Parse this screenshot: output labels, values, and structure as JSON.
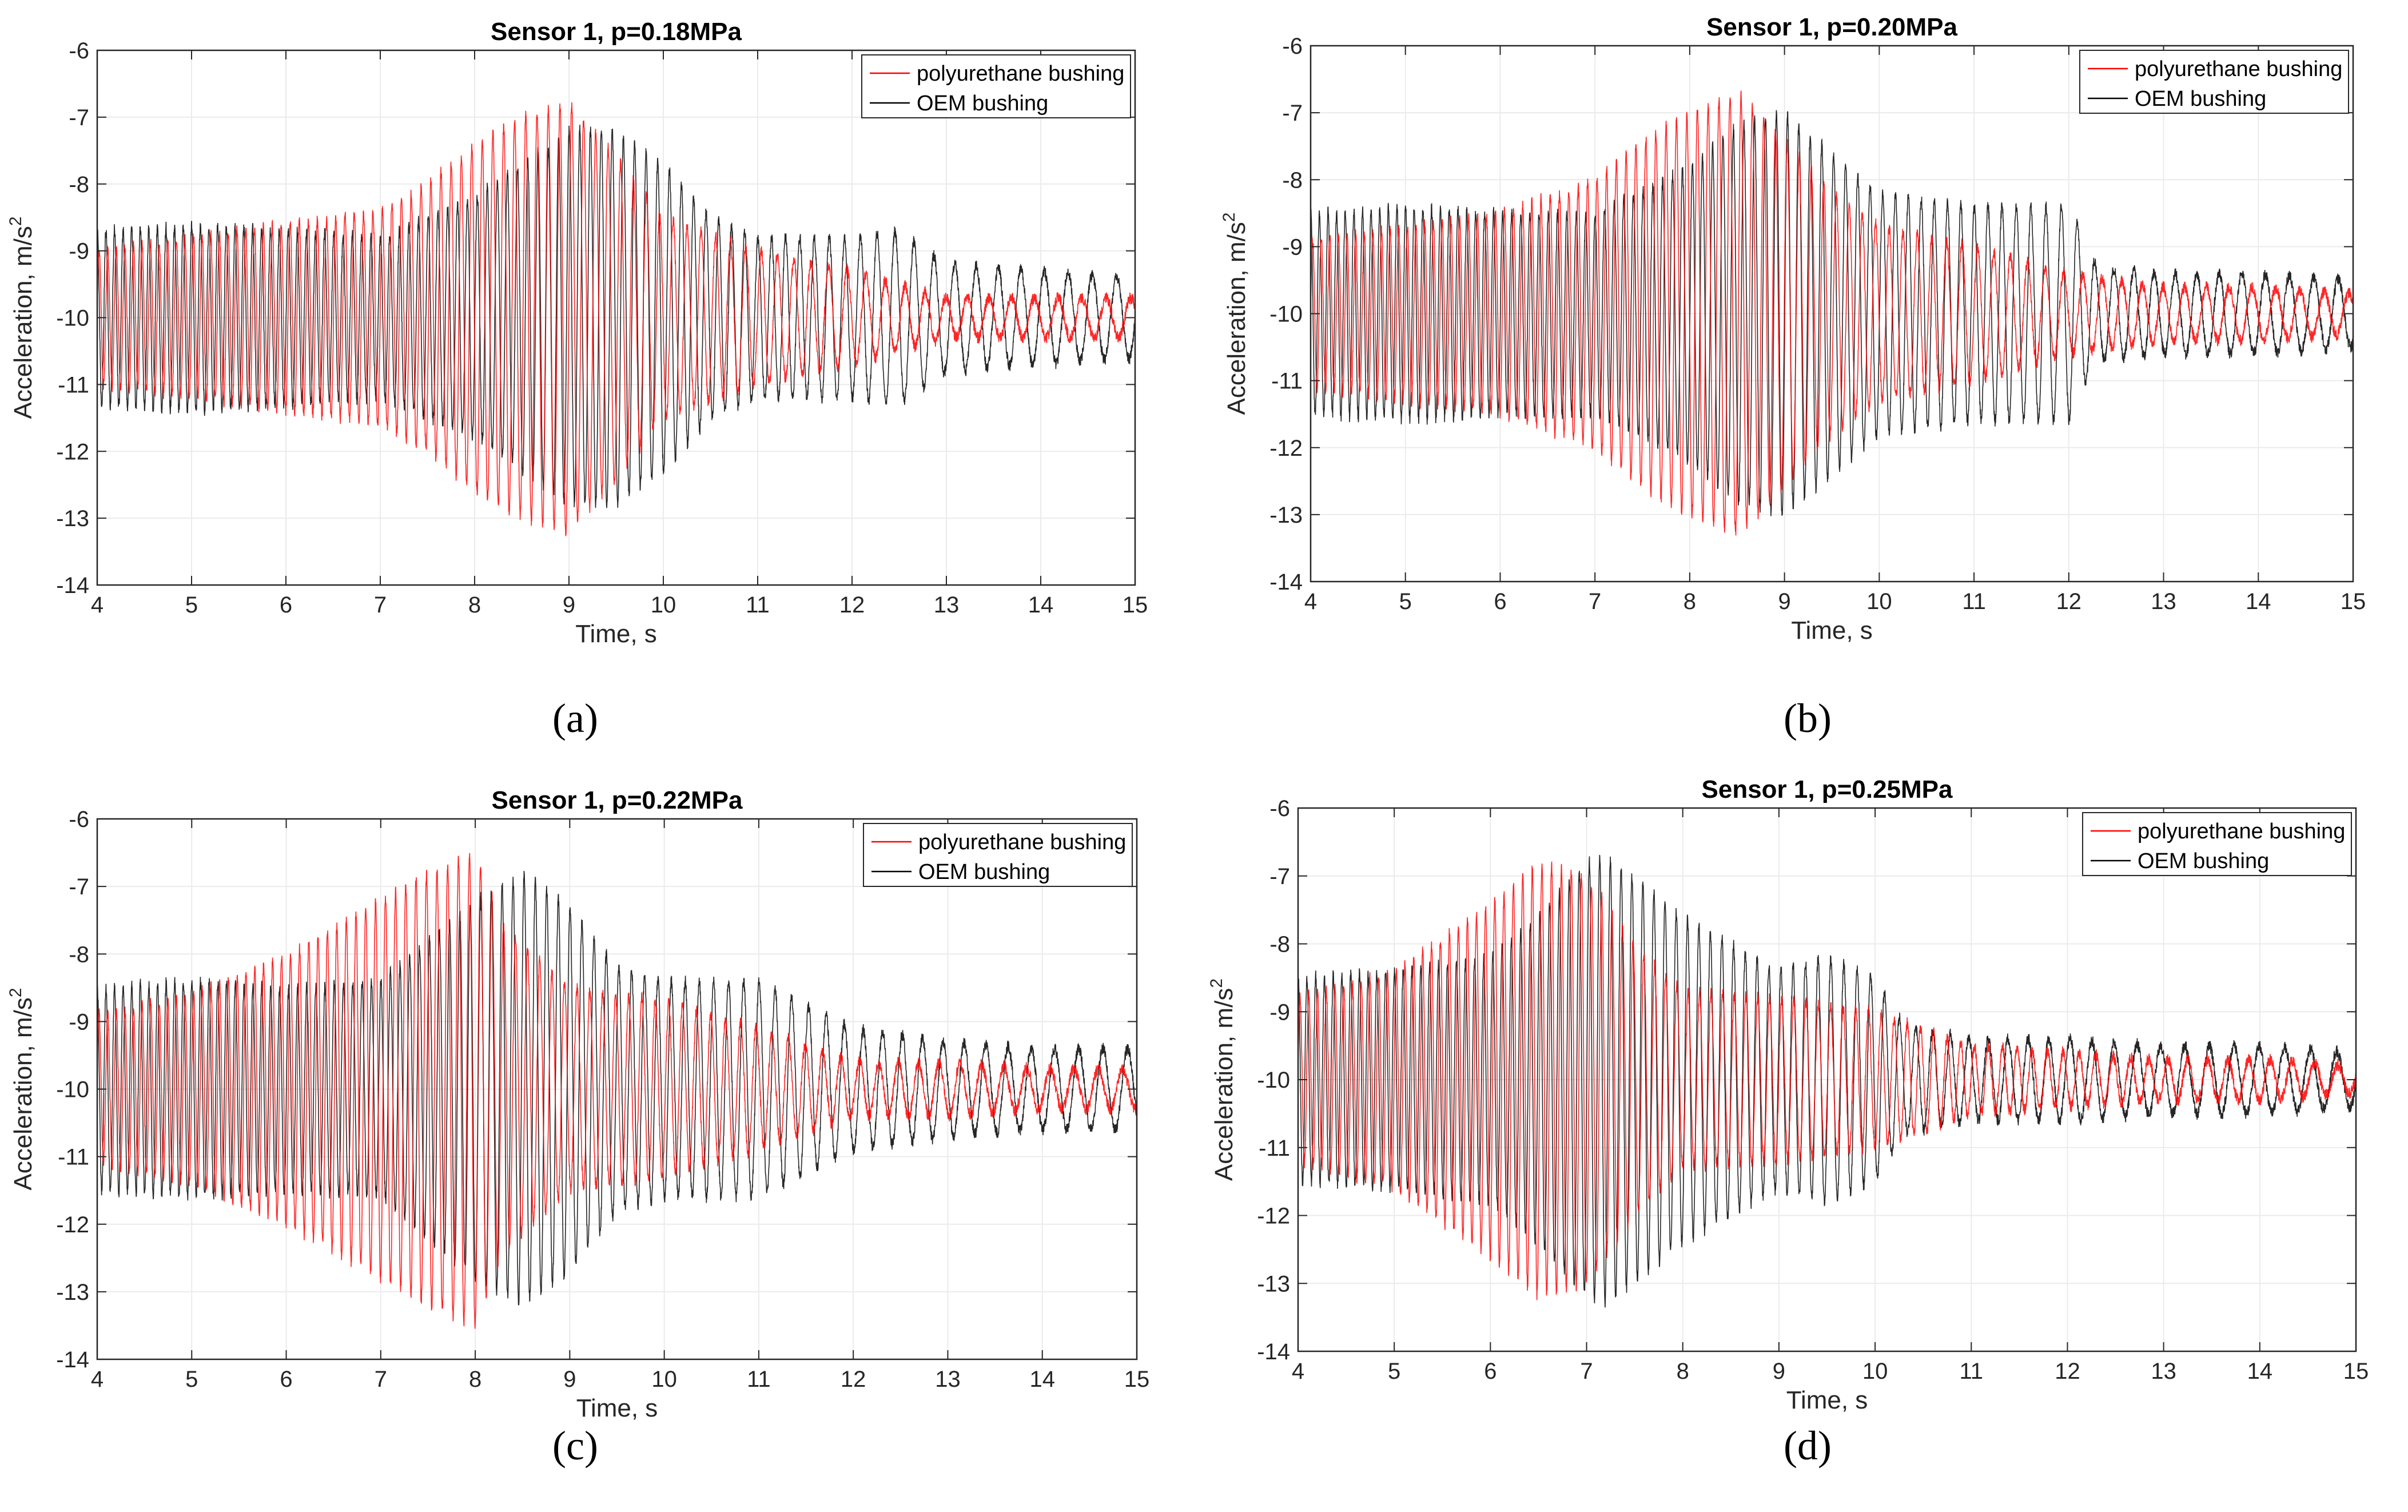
{
  "chart_data": [
    {
      "type": "line",
      "panel_label": "(a)",
      "title": "Sensor 1, p=0.18MPa",
      "xlabel": "Time, s",
      "ylabel": "Acceleration, m/s",
      "ylabel_sup": "2",
      "xlim": [
        4,
        15
      ],
      "ylim": [
        -14,
        -6
      ],
      "xticks": [
        "4",
        "5",
        "6",
        "7",
        "8",
        "9",
        "10",
        "11",
        "12",
        "13",
        "14",
        "15"
      ],
      "yticks": [
        "-14",
        "-13",
        "-12",
        "-11",
        "-10",
        "-9",
        "-8",
        "-7",
        "-6"
      ],
      "grid": true,
      "legend_position": "top-right",
      "series": [
        {
          "name": "polyurethane bushing",
          "color": "#ff0000",
          "envelope_t": [
            4,
            5,
            6,
            7,
            7.5,
            8,
            8.5,
            9,
            9.5,
            10,
            11,
            12,
            13,
            14,
            15
          ],
          "envelope_amp": [
            1.0,
            1.2,
            1.4,
            1.6,
            2.0,
            2.6,
            3.0,
            3.2,
            2.4,
            1.5,
            1.0,
            0.7,
            0.3,
            0.3,
            0.3
          ],
          "freq_hz": [
            11,
            11,
            10.5,
            10,
            9.5,
            9,
            8.5,
            8,
            7.5,
            7,
            6,
            5,
            4.5,
            4,
            3.8
          ]
        },
        {
          "name": "OEM bushing",
          "color": "#000000",
          "envelope_t": [
            4,
            5,
            6,
            7,
            8,
            9,
            9.5,
            10,
            10.5,
            11,
            12,
            12.5,
            13,
            14,
            15
          ],
          "envelope_amp": [
            1.3,
            1.4,
            1.3,
            1.2,
            1.8,
            2.8,
            2.8,
            2.3,
            1.5,
            1.2,
            1.2,
            1.3,
            0.8,
            0.7,
            0.6
          ],
          "freq_hz": [
            11,
            11,
            10.5,
            10,
            9.5,
            9,
            8.5,
            8,
            7.5,
            7,
            6,
            5,
            4.5,
            4,
            3.8
          ]
        }
      ]
    },
    {
      "type": "line",
      "panel_label": "(b)",
      "title": "Sensor 1, p=0.20MPa",
      "xlabel": "Time, s",
      "ylabel": "Acceleration, m/s",
      "ylabel_sup": "2",
      "xlim": [
        4,
        15
      ],
      "ylim": [
        -14,
        -6
      ],
      "xticks": [
        "4",
        "5",
        "6",
        "7",
        "8",
        "9",
        "10",
        "11",
        "12",
        "13",
        "14",
        "15"
      ],
      "yticks": [
        "-14",
        "-13",
        "-12",
        "-11",
        "-10",
        "-9",
        "-8",
        "-7",
        "-6"
      ],
      "grid": true,
      "legend_position": "top-right",
      "series": [
        {
          "name": "polyurethane bushing",
          "color": "#ff0000",
          "envelope_t": [
            4,
            5,
            6,
            7,
            7.5,
            8,
            8.5,
            9,
            9.5,
            10,
            11,
            12,
            13,
            14,
            15
          ],
          "envelope_amp": [
            1.1,
            1.3,
            1.5,
            2.0,
            2.6,
            3.0,
            3.3,
            2.6,
            1.8,
            1.3,
            1.0,
            0.6,
            0.4,
            0.4,
            0.3
          ],
          "freq_hz": [
            11,
            11,
            10.5,
            10,
            9.5,
            9,
            8.5,
            8,
            7.5,
            7,
            6,
            5,
            4.5,
            4,
            3.8
          ]
        },
        {
          "name": "OEM bushing",
          "color": "#000000",
          "envelope_t": [
            4,
            5,
            6,
            7,
            8,
            8.5,
            9,
            9.5,
            10,
            11,
            12,
            12.3,
            13,
            14,
            15
          ],
          "envelope_amp": [
            1.5,
            1.6,
            1.5,
            1.5,
            2.2,
            2.8,
            3.0,
            2.4,
            1.8,
            1.6,
            1.6,
            0.7,
            0.6,
            0.6,
            0.5
          ],
          "freq_hz": [
            11,
            11,
            10.5,
            10,
            9.5,
            9,
            8.5,
            8,
            7.5,
            7,
            6,
            5,
            4.5,
            4,
            3.8
          ]
        }
      ]
    },
    {
      "type": "line",
      "panel_label": "(c)",
      "title": "Sensor 1, p=0.22MPa",
      "xlabel": "Time, s",
      "ylabel": "Acceleration, m/s",
      "ylabel_sup": "2",
      "xlim": [
        4,
        15
      ],
      "ylim": [
        -14,
        -6
      ],
      "xticks": [
        "4",
        "5",
        "6",
        "7",
        "8",
        "9",
        "10",
        "11",
        "12",
        "13",
        "14",
        "15"
      ],
      "yticks": [
        "-14",
        "-13",
        "-12",
        "-11",
        "-10",
        "-9",
        "-8",
        "-7",
        "-6"
      ],
      "grid": true,
      "legend_position": "top-right",
      "series": [
        {
          "name": "polyurethane bushing",
          "color": "#ff0000",
          "envelope_t": [
            4,
            5,
            6,
            6.5,
            7,
            7.5,
            8,
            8.3,
            9,
            10,
            11,
            12,
            13,
            14,
            15
          ],
          "envelope_amp": [
            1.1,
            1.4,
            2.0,
            2.4,
            2.8,
            3.2,
            3.5,
            2.4,
            1.5,
            1.3,
            0.9,
            0.4,
            0.4,
            0.3,
            0.3
          ],
          "freq_hz": [
            11,
            11,
            10.5,
            10,
            9.5,
            9,
            8.5,
            8,
            7.5,
            7,
            6,
            5,
            4.5,
            4,
            3.8
          ]
        },
        {
          "name": "OEM bushing",
          "color": "#000000",
          "envelope_t": [
            4,
            5,
            6,
            7,
            7.5,
            8,
            8.5,
            9,
            9.5,
            10,
            11,
            12,
            13,
            14,
            15
          ],
          "envelope_amp": [
            1.5,
            1.6,
            1.5,
            1.6,
            2.2,
            2.8,
            3.2,
            2.7,
            1.8,
            1.6,
            1.6,
            0.9,
            0.7,
            0.6,
            0.6
          ],
          "freq_hz": [
            11,
            11,
            10.5,
            10,
            9.5,
            9,
            8.5,
            8,
            7.5,
            7,
            6,
            5,
            4.5,
            4,
            3.8
          ]
        }
      ]
    },
    {
      "type": "line",
      "panel_label": "(d)",
      "title": "Sensor 1, p=0.25MPa",
      "xlabel": "Time, s",
      "ylabel": "Acceleration, m/s",
      "ylabel_sup": "2",
      "xlim": [
        4,
        15
      ],
      "ylim": [
        -14,
        -6
      ],
      "xticks": [
        "4",
        "5",
        "6",
        "7",
        "8",
        "9",
        "10",
        "11",
        "12",
        "13",
        "14",
        "15"
      ],
      "yticks": [
        "-14",
        "-13",
        "-12",
        "-11",
        "-10",
        "-9",
        "-8",
        "-7",
        "-6"
      ],
      "grid": true,
      "legend_position": "top-right",
      "series": [
        {
          "name": "polyurethane bushing",
          "color": "#ff0000",
          "envelope_t": [
            4,
            5,
            6,
            6.5,
            7,
            7.5,
            8,
            9,
            10,
            11,
            12,
            13,
            14,
            15
          ],
          "envelope_amp": [
            1.2,
            1.6,
            2.6,
            3.2,
            3.0,
            2.0,
            1.3,
            1.2,
            1.0,
            0.5,
            0.4,
            0.3,
            0.3,
            0.2
          ],
          "freq_hz": [
            11,
            11,
            10.5,
            10,
            9.5,
            9,
            8.5,
            8,
            7.5,
            7,
            6,
            5,
            4.5,
            4
          ]
        },
        {
          "name": "OEM bushing",
          "color": "#000000",
          "envelope_t": [
            4,
            5,
            6,
            6.5,
            7,
            7.2,
            8,
            9,
            9.5,
            10,
            10.3,
            11,
            12,
            13,
            14,
            15
          ],
          "envelope_amp": [
            1.5,
            1.6,
            1.8,
            2.4,
            3.2,
            3.3,
            2.4,
            1.6,
            1.8,
            1.5,
            0.8,
            0.6,
            0.6,
            0.5,
            0.5,
            0.4
          ],
          "freq_hz": [
            11,
            11,
            10.5,
            10,
            9.5,
            9,
            8.5,
            8,
            7.5,
            7,
            6,
            5,
            4.5,
            4,
            3.8,
            3.6
          ]
        }
      ]
    }
  ]
}
